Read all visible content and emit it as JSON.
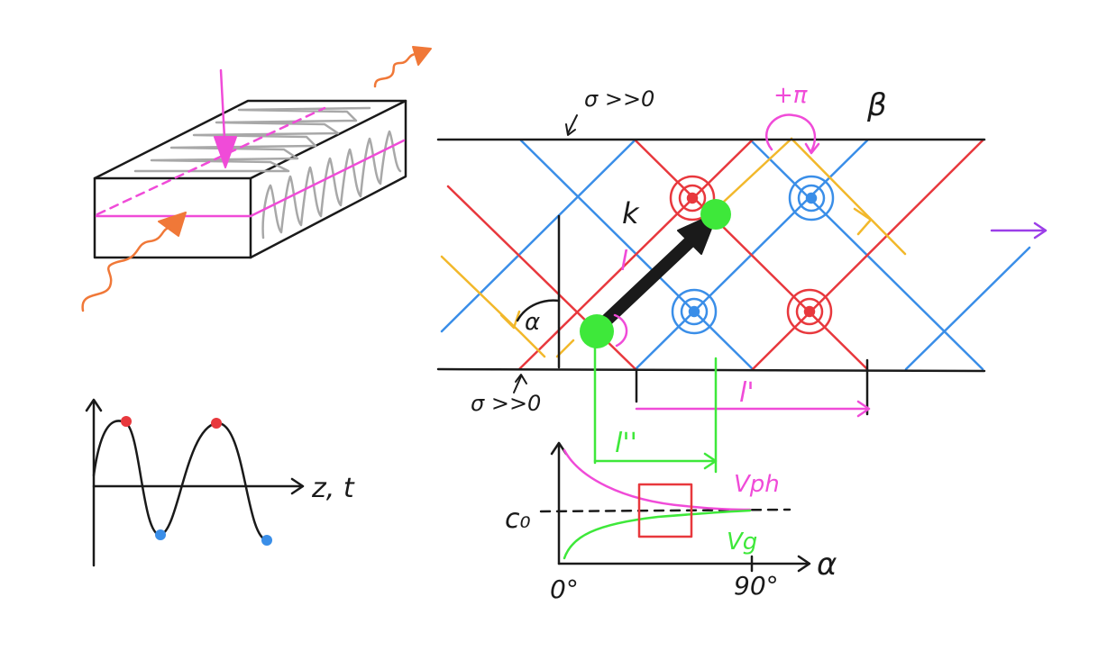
{
  "colors": {
    "black": "#1a1a1a",
    "red": "#e8383d",
    "blue": "#3a8ee8",
    "yellow": "#f2b82b",
    "magenta": "#f04bd8",
    "green": "#3ee83a",
    "orange": "#f07838",
    "gray": "#a8a8a8",
    "purple": "#9b3ee8"
  },
  "labels": {
    "sigma_top": "σ >>0",
    "sigma_bottom": "σ >>0",
    "beta": "β",
    "plus_pi": "+π",
    "k": "k",
    "l_small": "l",
    "alpha_angle": "α",
    "l_prime": "l'",
    "l_double_prime": "l''",
    "wave_axis": "z, t",
    "c0": "c₀",
    "vph": "Vph",
    "vg": "Vg",
    "alpha_axis": "α",
    "zero_deg": "0°",
    "ninety_deg": "90°"
  }
}
